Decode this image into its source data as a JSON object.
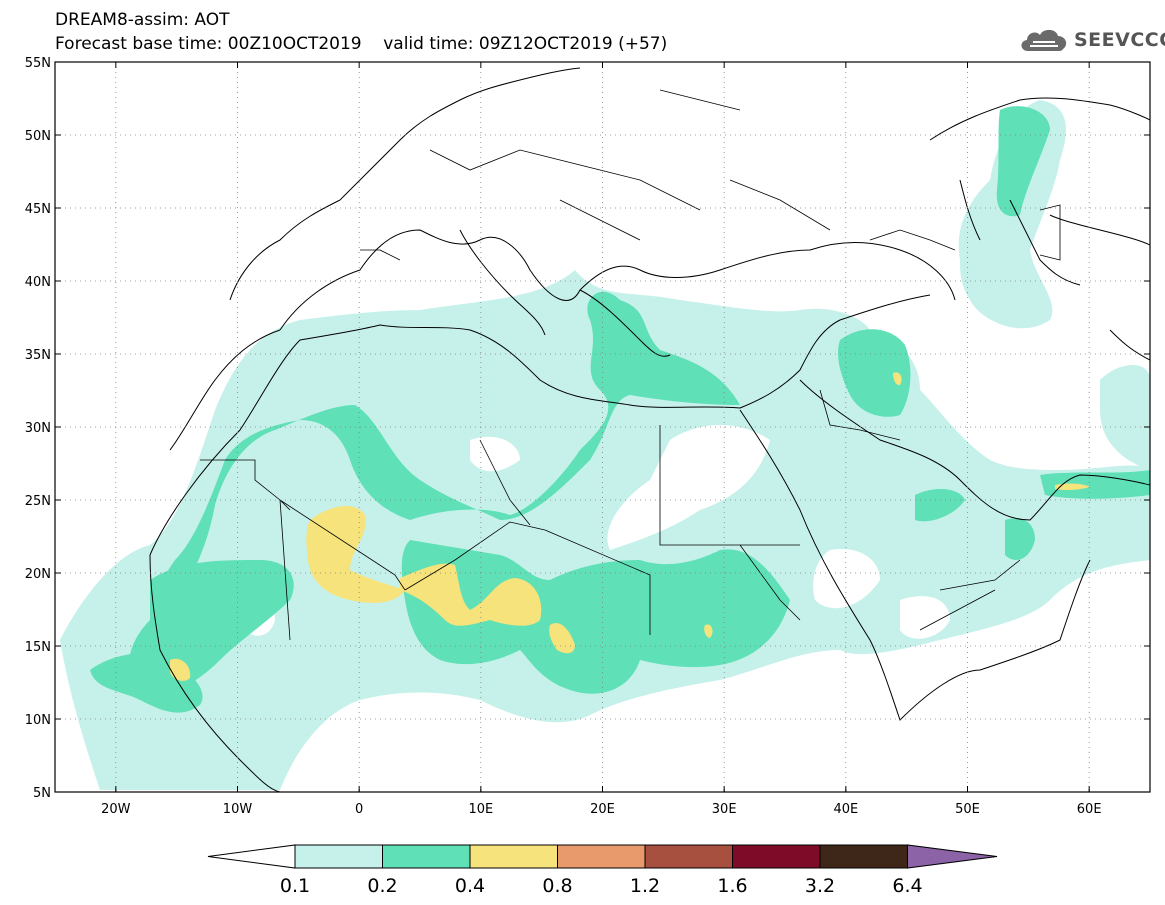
{
  "header": {
    "line1": "DREAM8-assim: AOT",
    "line2": "Forecast base time: 00Z10OCT2019    valid time: 09Z12OCT2019 (+57)"
  },
  "logo": {
    "icon": "cloud-icon",
    "text": "SEEVCCC"
  },
  "map": {
    "lon_range": [
      -25,
      65
    ],
    "lat_range": [
      5,
      55
    ],
    "lat_ticks": [
      "5N",
      "10N",
      "15N",
      "20N",
      "25N",
      "30N",
      "35N",
      "40N",
      "45N",
      "50N",
      "55N"
    ],
    "lon_ticks": [
      "20W",
      "10W",
      "0",
      "10E",
      "20E",
      "30E",
      "40E",
      "50E",
      "60E"
    ],
    "gridlines": "dotted"
  },
  "colorbar": {
    "labels": [
      "0.1",
      "0.2",
      "0.4",
      "0.8",
      "1.2",
      "1.6",
      "3.2",
      "6.4"
    ],
    "colors": [
      "#ffffff",
      "#c6f1eb",
      "#5fe0b7",
      "#f7e37b",
      "#e99a6d",
      "#a75040",
      "#7e0b28",
      "#3e2618",
      "#8b63a6"
    ]
  }
}
